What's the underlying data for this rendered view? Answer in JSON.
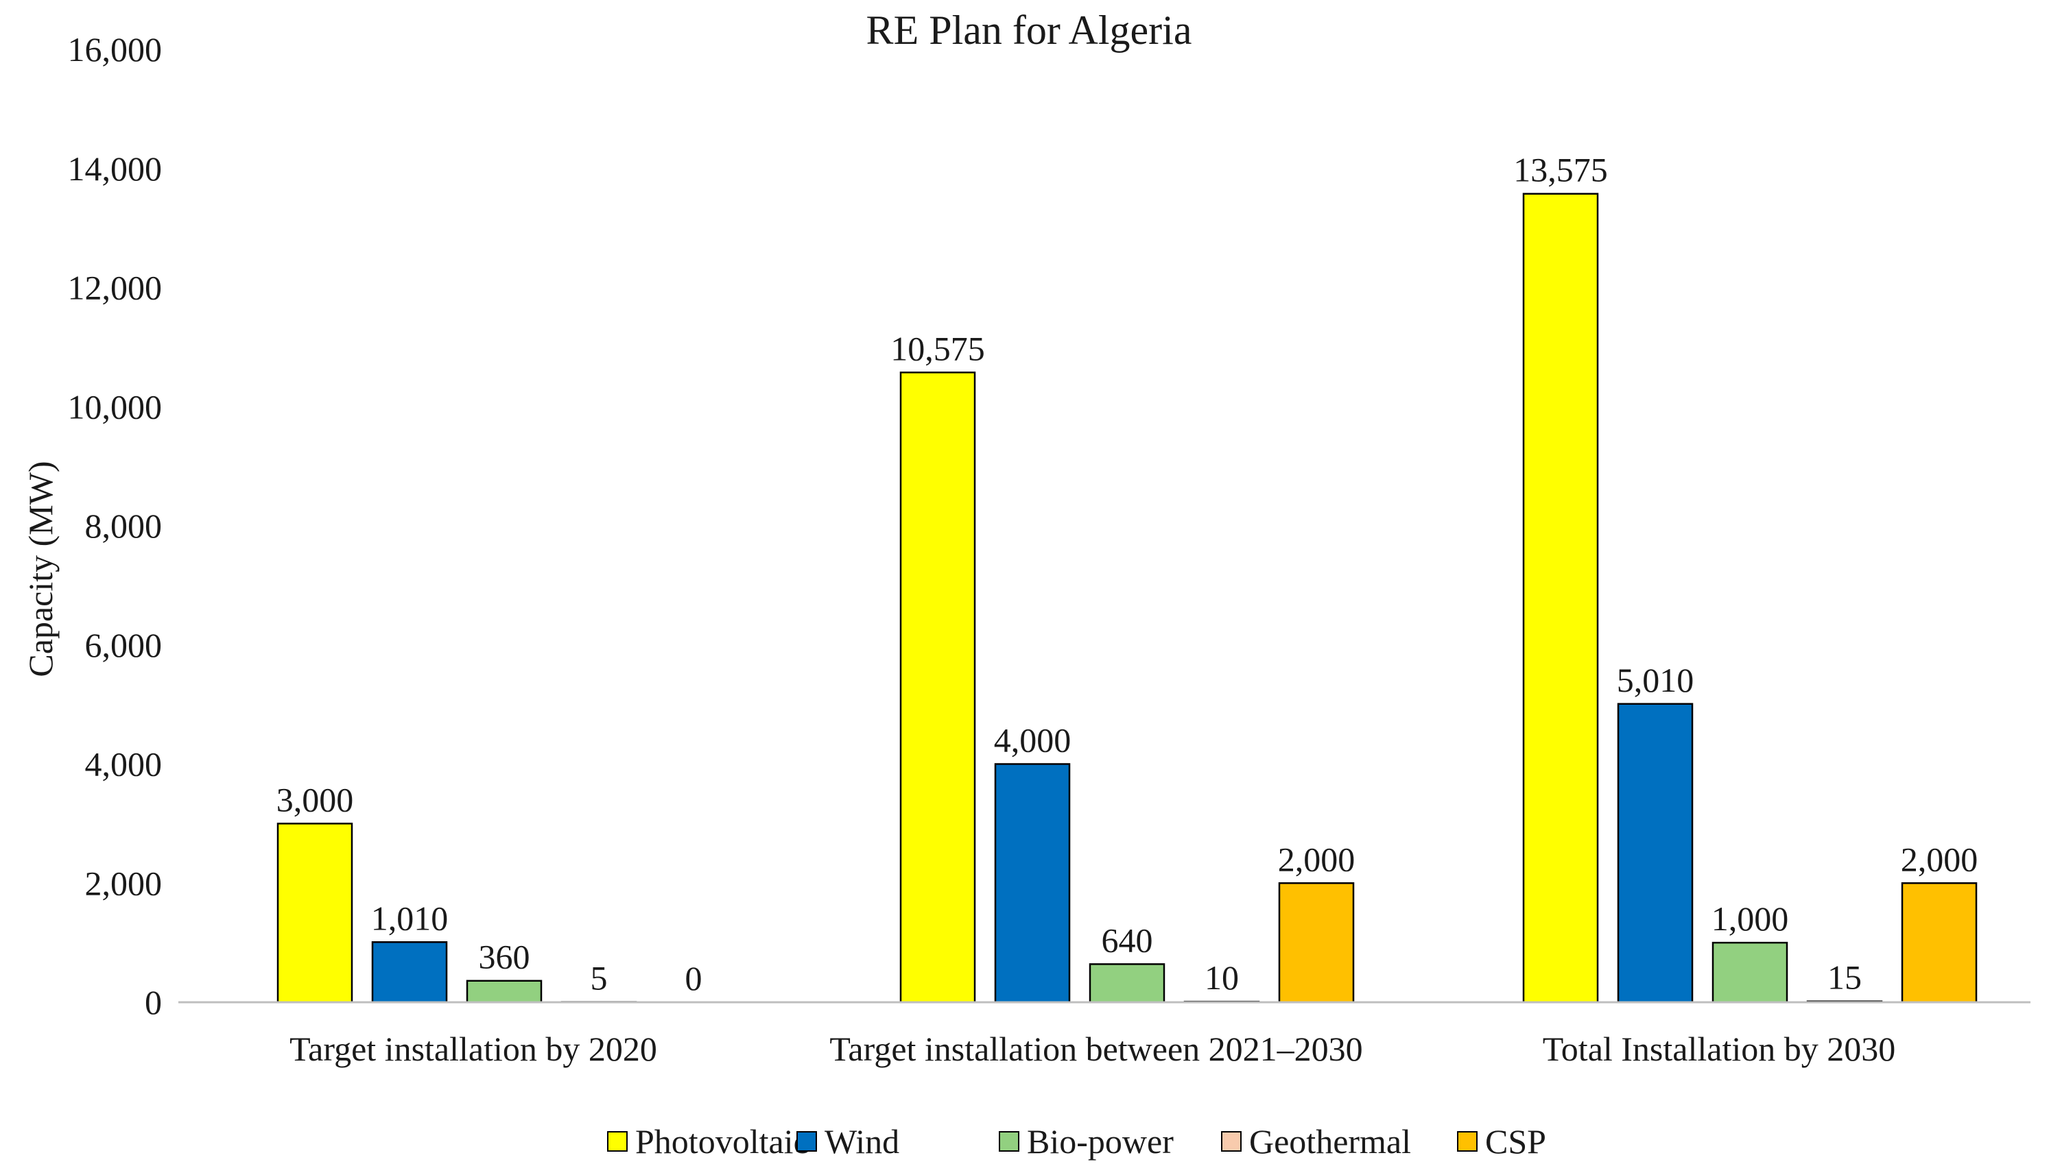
{
  "chart_data": {
    "type": "bar",
    "title": "RE Plan for Algeria",
    "xlabel": "",
    "ylabel": "Capacity (MW)",
    "ylim": [
      0,
      16000
    ],
    "yticks": [
      0,
      2000,
      4000,
      6000,
      8000,
      10000,
      12000,
      14000,
      16000
    ],
    "ytick_labels": [
      "0",
      "2,000",
      "4,000",
      "6,000",
      "8,000",
      "10,000",
      "12,000",
      "14,000",
      "16,000"
    ],
    "categories": [
      "Target installation by 2020",
      "Target installation between 2021–2030",
      "Total Installation by 2030"
    ],
    "series": [
      {
        "name": "Photovoltaic",
        "color": "#FFFF00",
        "values": [
          3000,
          10575,
          13575
        ],
        "labels": [
          "3,000",
          "10,575",
          "13,575"
        ]
      },
      {
        "name": "Wind",
        "color": "#0070C0",
        "values": [
          1010,
          4000,
          5010
        ],
        "labels": [
          "1,010",
          "4,000",
          "5,010"
        ]
      },
      {
        "name": "Bio-power",
        "color": "#92D080",
        "values": [
          360,
          640,
          1000
        ],
        "labels": [
          "360",
          "640",
          "1,000"
        ]
      },
      {
        "name": "Geothermal",
        "color": "#F8CBAD",
        "values": [
          5,
          10,
          15
        ],
        "labels": [
          "5",
          "10",
          "15"
        ]
      },
      {
        "name": "CSP",
        "color": "#FFC000",
        "values": [
          0,
          2000,
          2000
        ],
        "labels": [
          "0",
          "2,000",
          "2,000"
        ]
      }
    ],
    "legend_position": "bottom",
    "grid": false
  }
}
